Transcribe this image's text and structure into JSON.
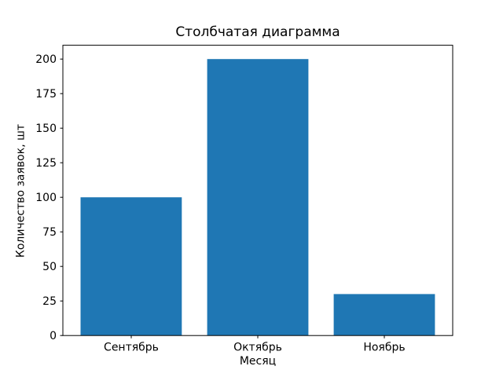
{
  "chart_data": {
    "type": "bar",
    "title": "Столбчатая диаграмма",
    "xlabel": "Месяц",
    "ylabel": "Количество заявок, шт",
    "categories": [
      "Сентябрь",
      "Октябрь",
      "Ноябрь"
    ],
    "values": [
      100,
      200,
      30
    ],
    "yticks": [
      0,
      25,
      50,
      75,
      100,
      125,
      150,
      175,
      200
    ],
    "ylim": [
      0,
      210
    ],
    "bar_color": "#1f77b4",
    "spine_color": "#000000",
    "background": "#ffffff",
    "grid": false,
    "legend": "none"
  }
}
